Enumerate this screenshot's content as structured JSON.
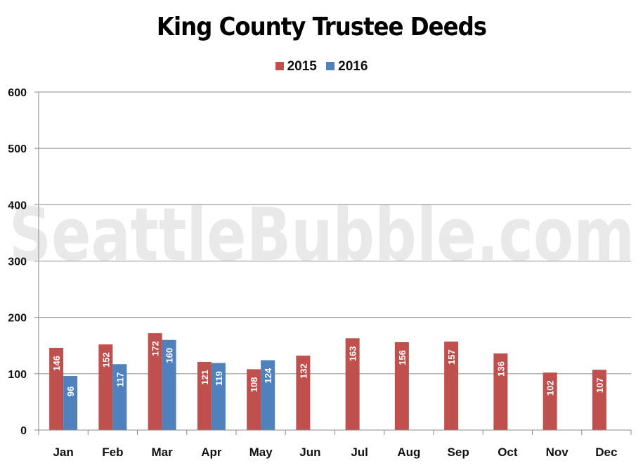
{
  "chart_data": {
    "type": "bar",
    "title": "King County Trustee Deeds",
    "categories": [
      "Jan",
      "Feb",
      "Mar",
      "Apr",
      "May",
      "Jun",
      "Jul",
      "Aug",
      "Sep",
      "Oct",
      "Nov",
      "Dec"
    ],
    "series": [
      {
        "name": "2015",
        "color": "#c0504d",
        "values": [
          146,
          152,
          172,
          121,
          108,
          132,
          163,
          156,
          157,
          136,
          102,
          107
        ]
      },
      {
        "name": "2016",
        "color": "#4f81bd",
        "values": [
          96,
          117,
          160,
          119,
          124,
          null,
          null,
          null,
          null,
          null,
          null,
          null
        ]
      }
    ],
    "ylim": [
      0,
      600
    ],
    "yticks": [
      0,
      100,
      200,
      300,
      400,
      500,
      600
    ],
    "grid": true,
    "legend_position": "top-center",
    "data_labels": true,
    "watermark": "SeattleBubble.com"
  }
}
